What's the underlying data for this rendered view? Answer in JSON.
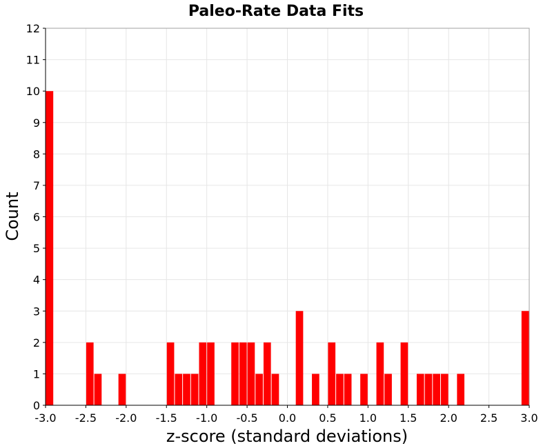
{
  "chart_data": {
    "type": "bar",
    "title": "Paleo-Rate Data Fits",
    "xlabel": "z-score (standard deviations)",
    "ylabel": "Count",
    "xlim": [
      -3.0,
      3.0
    ],
    "ylim": [
      0,
      12
    ],
    "bin_width": 0.1,
    "grid": true,
    "bar_color": "#ff0000",
    "x_ticks": [
      "-3.0",
      "-2.5",
      "-2.0",
      "-1.5",
      "-1.0",
      "-0.5",
      "0.0",
      "0.5",
      "1.0",
      "1.5",
      "2.0",
      "2.5",
      "3.0"
    ],
    "x_tick_values": [
      -3.0,
      -2.5,
      -2.0,
      -1.5,
      -1.0,
      -0.5,
      0.0,
      0.5,
      1.0,
      1.5,
      2.0,
      2.5,
      3.0
    ],
    "y_ticks": [
      "0",
      "1",
      "2",
      "3",
      "4",
      "5",
      "6",
      "7",
      "8",
      "9",
      "10",
      "11",
      "12"
    ],
    "y_tick_values": [
      0,
      1,
      2,
      3,
      4,
      5,
      6,
      7,
      8,
      9,
      10,
      11,
      12
    ],
    "bins": [
      {
        "x": -2.95,
        "count": 10
      },
      {
        "x": -2.45,
        "count": 2
      },
      {
        "x": -2.35,
        "count": 1
      },
      {
        "x": -2.05,
        "count": 1
      },
      {
        "x": -1.45,
        "count": 2
      },
      {
        "x": -1.35,
        "count": 1
      },
      {
        "x": -1.25,
        "count": 1
      },
      {
        "x": -1.15,
        "count": 1
      },
      {
        "x": -1.05,
        "count": 2
      },
      {
        "x": -0.95,
        "count": 2
      },
      {
        "x": -0.65,
        "count": 2
      },
      {
        "x": -0.55,
        "count": 2
      },
      {
        "x": -0.45,
        "count": 2
      },
      {
        "x": -0.35,
        "count": 1
      },
      {
        "x": -0.25,
        "count": 2
      },
      {
        "x": -0.15,
        "count": 1
      },
      {
        "x": 0.15,
        "count": 3
      },
      {
        "x": 0.35,
        "count": 1
      },
      {
        "x": 0.55,
        "count": 2
      },
      {
        "x": 0.65,
        "count": 1
      },
      {
        "x": 0.75,
        "count": 1
      },
      {
        "x": 0.95,
        "count": 1
      },
      {
        "x": 1.15,
        "count": 2
      },
      {
        "x": 1.25,
        "count": 1
      },
      {
        "x": 1.45,
        "count": 2
      },
      {
        "x": 1.65,
        "count": 1
      },
      {
        "x": 1.75,
        "count": 1
      },
      {
        "x": 1.85,
        "count": 1
      },
      {
        "x": 1.95,
        "count": 1
      },
      {
        "x": 2.15,
        "count": 1
      },
      {
        "x": 2.95,
        "count": 3
      }
    ]
  }
}
